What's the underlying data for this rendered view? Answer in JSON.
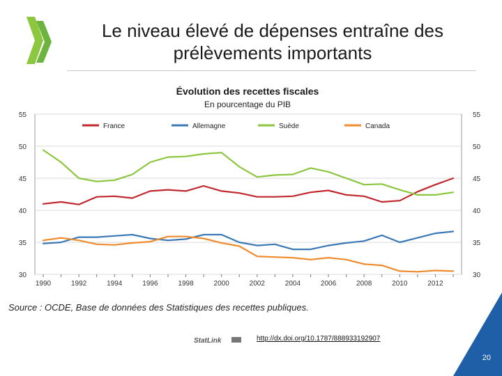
{
  "slide": {
    "title_line1": "Le niveau élevé de dépenses entraîne des",
    "title_line2": "prélèvements importants",
    "source": "Source : OCDE, Base de données des Statistiques des recettes publiques.",
    "statlink_label": "StatLink",
    "link": "http://dx.doi.org/10.1787/888933192907",
    "page_number": "20",
    "colors": {
      "logo_green": "#8dc63f",
      "corner_blue": "#1f5fa8"
    }
  },
  "chart_data": {
    "type": "line",
    "title": "Évolution des recettes fiscales",
    "subtitle": "En pourcentage du PIB",
    "xlabel": "",
    "ylabel": "",
    "ylim": [
      30,
      55
    ],
    "xlim": [
      1990,
      2013
    ],
    "y_ticks": [
      30,
      35,
      40,
      45,
      50,
      55
    ],
    "x_ticks": [
      1990,
      1992,
      1994,
      1996,
      1998,
      2000,
      2002,
      2004,
      2006,
      2008,
      2010,
      2012
    ],
    "grid": true,
    "legend_position": "top",
    "x": [
      1990,
      1991,
      1992,
      1993,
      1994,
      1995,
      1996,
      1997,
      1998,
      1999,
      2000,
      2001,
      2002,
      2003,
      2004,
      2005,
      2006,
      2007,
      2008,
      2009,
      2010,
      2011,
      2012,
      2013
    ],
    "series": [
      {
        "name": "France",
        "color": "#c0272d",
        "values": [
          41.0,
          41.3,
          40.9,
          42.1,
          42.2,
          41.9,
          43.0,
          43.2,
          43.0,
          43.8,
          43.0,
          42.7,
          42.1,
          42.1,
          42.2,
          42.8,
          43.1,
          42.4,
          42.2,
          41.3,
          41.5,
          42.9,
          44.0,
          45.0
        ]
      },
      {
        "name": "Allemagne",
        "color": "#3a78b5",
        "values": [
          34.8,
          35.0,
          35.8,
          35.8,
          36.0,
          36.2,
          35.6,
          35.3,
          35.5,
          36.2,
          36.2,
          35.0,
          34.5,
          34.7,
          33.9,
          33.9,
          34.5,
          34.9,
          35.2,
          36.1,
          35.0,
          35.7,
          36.4,
          36.7
        ]
      },
      {
        "name": "Suède",
        "color": "#8cc63e",
        "values": [
          49.4,
          47.5,
          45.0,
          44.5,
          44.7,
          45.6,
          47.5,
          48.3,
          48.4,
          48.8,
          49.0,
          46.8,
          45.2,
          45.5,
          45.6,
          46.6,
          46.0,
          45.0,
          44.0,
          44.1,
          43.2,
          42.4,
          42.4,
          42.8
        ]
      },
      {
        "name": "Canada",
        "color": "#ef8b2c",
        "values": [
          35.3,
          35.7,
          35.3,
          34.7,
          34.6,
          34.9,
          35.1,
          35.9,
          35.9,
          35.6,
          34.9,
          34.4,
          32.8,
          32.7,
          32.6,
          32.3,
          32.6,
          32.3,
          31.6,
          31.4,
          30.5,
          30.4,
          30.6,
          30.5
        ]
      }
    ]
  }
}
